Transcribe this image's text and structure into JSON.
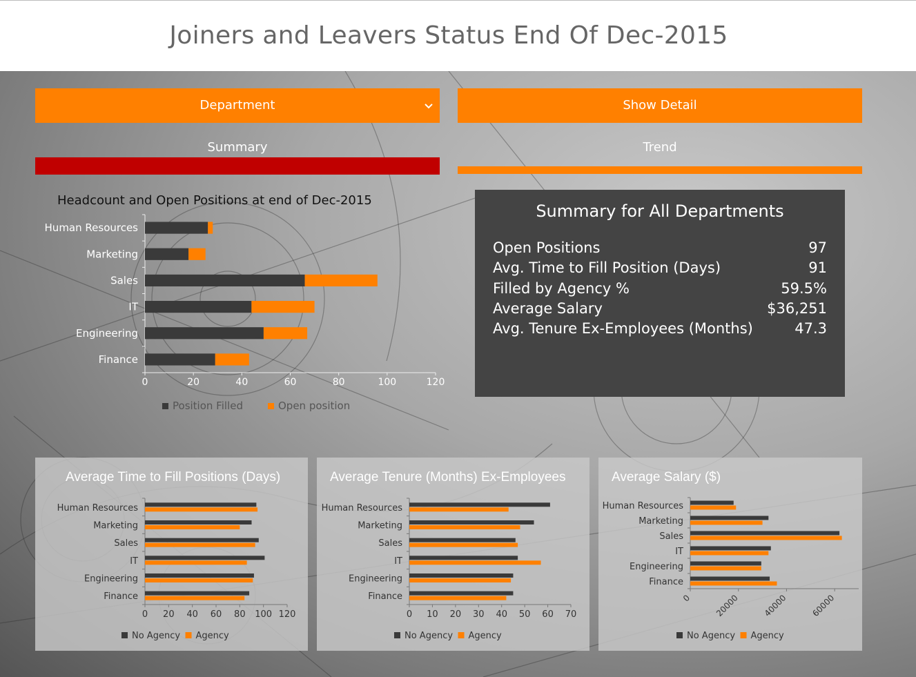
{
  "page": {
    "title": "Joiners and Leavers Status End Of Dec-2015"
  },
  "controls": {
    "department_select": {
      "label": "Department",
      "icon": "chevron-down-icon"
    },
    "show_detail_label": "Show Detail"
  },
  "tabs": [
    {
      "label": "Summary",
      "active": true,
      "bar_color": "#c00000"
    },
    {
      "label": "Trend",
      "active": false,
      "bar_color": "#ff8000"
    }
  ],
  "summary": {
    "title": "Summary for All Departments",
    "rows": [
      {
        "label": "Open Positions",
        "value": "97"
      },
      {
        "label": "Avg. Time to Fill Position (Days)",
        "value": "91"
      },
      {
        "label": "Filled by Agency %",
        "value": "59.5%"
      },
      {
        "label": "Average Salary",
        "value": "$36,251"
      },
      {
        "label": "Avg. Tenure Ex-Employees (Months)",
        "value": "47.3"
      }
    ]
  },
  "colors": {
    "accent": "#ff8000",
    "dark_bar": "#3a3a3a",
    "active_tab": "#c00000",
    "card": "#444444"
  },
  "chart_data": [
    {
      "id": "headcount",
      "type": "bar",
      "stacked": true,
      "orientation": "horizontal",
      "title": "Headcount and Open Positions at end of Dec-2015",
      "categories": [
        "Human Resources",
        "Marketing",
        "Sales",
        "IT",
        "Engineering",
        "Finance"
      ],
      "series": [
        {
          "name": "Position Filled",
          "color": "#3a3a3a",
          "values": [
            26,
            18,
            66,
            44,
            49,
            29
          ]
        },
        {
          "name": "Open position",
          "color": "#ff8000",
          "values": [
            2,
            7,
            30,
            26,
            18,
            14
          ]
        }
      ],
      "xlim": [
        0,
        120
      ],
      "xticks": [
        0,
        20,
        40,
        60,
        80,
        100,
        120
      ],
      "legend": "bottom"
    },
    {
      "id": "time-to-fill",
      "type": "bar",
      "orientation": "horizontal",
      "title": "Average Time to Fill Positions (Days)",
      "categories": [
        "Human Resources",
        "Marketing",
        "Sales",
        "IT",
        "Engineering",
        "Finance"
      ],
      "series": [
        {
          "name": "No Agency",
          "color": "#3a3a3a",
          "values": [
            94,
            90,
            96,
            101,
            92,
            88
          ]
        },
        {
          "name": "Agency",
          "color": "#ff8000",
          "values": [
            95,
            80,
            93,
            86,
            91,
            84
          ]
        }
      ],
      "xlim": [
        0,
        120
      ],
      "xticks": [
        0,
        20,
        40,
        60,
        80,
        100,
        120
      ],
      "legend": "bottom"
    },
    {
      "id": "tenure",
      "type": "bar",
      "orientation": "horizontal",
      "title": "Average Tenure (Months) Ex-Employees",
      "categories": [
        "Human Resources",
        "Marketing",
        "Sales",
        "IT",
        "Engineering",
        "Finance"
      ],
      "series": [
        {
          "name": "No Agency",
          "color": "#3a3a3a",
          "values": [
            61,
            54,
            46,
            47,
            45,
            45
          ]
        },
        {
          "name": "Agency",
          "color": "#ff8000",
          "values": [
            43,
            48,
            47,
            57,
            44,
            42
          ]
        }
      ],
      "xlim": [
        0,
        70
      ],
      "xticks": [
        0,
        10,
        20,
        30,
        40,
        50,
        60,
        70
      ],
      "legend": "bottom"
    },
    {
      "id": "salary",
      "type": "bar",
      "orientation": "horizontal",
      "title": "Average Salary ($)",
      "categories": [
        "Human Resources",
        "Marketing",
        "Sales",
        "IT",
        "Engineering",
        "Finance"
      ],
      "series": [
        {
          "name": "No Agency",
          "color": "#3a3a3a",
          "values": [
            18000,
            32500,
            62000,
            33500,
            29500,
            33000
          ]
        },
        {
          "name": "Agency",
          "color": "#ff8000",
          "values": [
            19000,
            30000,
            63000,
            32500,
            29500,
            36000
          ]
        }
      ],
      "xlim": [
        0,
        70000
      ],
      "xticks": [
        0,
        20000,
        40000,
        60000
      ],
      "legend": "bottom"
    }
  ]
}
